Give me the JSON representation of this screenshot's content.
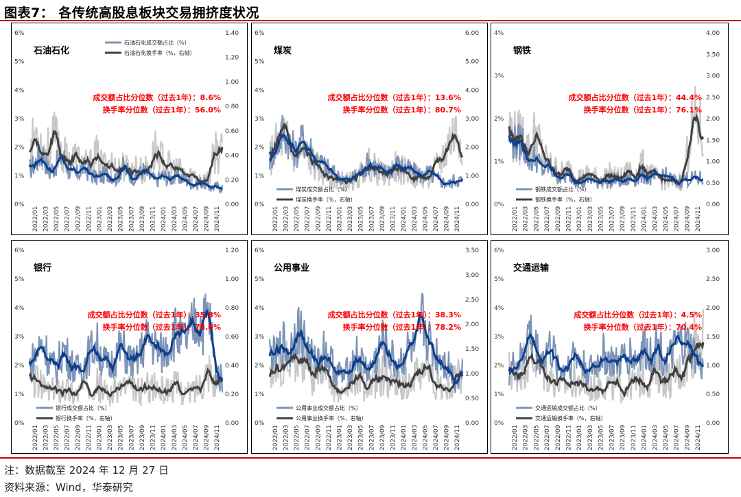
{
  "title": "图表7：  各传统高股息板块交易拥挤度状况",
  "note": "注：数据截至 2024 年 12 月 27 日",
  "source": "资料来源：Wind，华泰研究",
  "colors": {
    "share": "#0e3f8a",
    "share_light": "#7d94b8",
    "turnover": "#404040",
    "turnover_light": "#c8c8c8",
    "annotation": "#ff0000",
    "rule": "#c00000"
  },
  "x_ticks": [
    "2022/01",
    "2022/03",
    "2022/05",
    "2022/07",
    "2022/09",
    "2022/11",
    "2023/01",
    "2023/03",
    "2023/05",
    "2023/07",
    "2023/09",
    "2023/11",
    "2024/01",
    "2024/03",
    "2024/05",
    "2024/07",
    "2024/09",
    "2024/11"
  ],
  "chart_data": [
    {
      "type": "line",
      "panel_title": "石油石化",
      "y_left": {
        "min": 0,
        "max": 6,
        "ticks": [
          "0%",
          "1%",
          "2%",
          "3%",
          "4%",
          "5%",
          "6%"
        ]
      },
      "y_right": {
        "min": 0,
        "max": 1.4,
        "ticks": [
          "0.00",
          "0.20",
          "0.40",
          "0.60",
          "0.80",
          "1.00",
          "1.20",
          "1.40"
        ]
      },
      "annotations": [
        "成交额占比分位数（过去1年）：8.6%",
        "换手率分位数（过去1年）：56.0%"
      ],
      "legend": [
        "石油石化成交额占比（%）",
        "石油石化换手率（%，右轴）"
      ],
      "legend_position": "top",
      "share_anchors": [
        1.2,
        1.5,
        1.8,
        1.1,
        1.4,
        1.7,
        1.2,
        1.0,
        1.3,
        1.1,
        0.9,
        1.0,
        1.1,
        0.9,
        1.3,
        1.1,
        0.9,
        1.2,
        1.0,
        0.8,
        1.0,
        0.9,
        1.0,
        0.9,
        0.8,
        0.7,
        0.8,
        0.6,
        0.6,
        0.6
      ],
      "turnover_anchors": [
        0.4,
        0.6,
        0.45,
        0.45,
        0.55,
        0.4,
        0.35,
        0.38,
        0.32,
        0.3,
        0.4,
        0.3,
        0.35,
        0.28,
        0.32,
        0.26,
        0.3,
        0.26,
        0.3,
        0.45,
        0.35,
        0.3,
        0.28,
        0.25,
        0.22,
        0.24,
        0.2,
        0.2,
        0.45,
        0.4
      ],
      "share_series_name": "石油石化成交额占比（%）",
      "turnover_series_name": "石油石化换手率（%，右轴）"
    },
    {
      "type": "line",
      "panel_title": "煤炭",
      "y_left": {
        "min": 0,
        "max": 6,
        "ticks": [
          "0%",
          "1%",
          "2%",
          "3%",
          "4%",
          "5%",
          "6%"
        ]
      },
      "y_right": {
        "min": 0,
        "max": 6,
        "ticks": [
          "0.00",
          "1.00",
          "2.00",
          "3.00",
          "4.00",
          "5.00",
          "6.00"
        ]
      },
      "annotations": [
        "成交额占比分位数（过去1年）：13.6%",
        "换手率分位数（过去1年）：80.7%"
      ],
      "legend": [
        "煤炭成交额占比（%）",
        "煤炭换手率（%，右轴）"
      ],
      "legend_position": "bottom-left",
      "share_anchors": [
        1.6,
        2.0,
        2.6,
        2.2,
        1.8,
        2.3,
        2.0,
        1.6,
        1.4,
        1.2,
        1.0,
        0.9,
        0.8,
        1.0,
        1.2,
        1.5,
        1.3,
        1.1,
        1.2,
        1.4,
        1.3,
        1.2,
        1.1,
        1.0,
        1.1,
        0.9,
        0.8,
        0.7,
        0.9,
        0.8
      ],
      "turnover_anchors": [
        1.6,
        2.0,
        2.4,
        2.0,
        1.6,
        1.8,
        1.6,
        1.3,
        1.1,
        1.0,
        0.9,
        0.8,
        0.8,
        0.9,
        1.1,
        1.4,
        1.2,
        1.0,
        1.1,
        1.3,
        1.2,
        1.1,
        1.0,
        0.9,
        1.0,
        1.2,
        1.6,
        2.2,
        2.5,
        2.4
      ],
      "share_series_name": "煤炭成交额占比（%）",
      "turnover_series_name": "煤炭换手率（%，右轴）"
    },
    {
      "type": "line",
      "panel_title": "钢铁",
      "y_left": {
        "min": 0,
        "max": 4,
        "ticks": [
          "0%",
          "1%",
          "2%",
          "3%",
          "4%"
        ]
      },
      "y_right": {
        "min": 0,
        "max": 4,
        "ticks": [
          "0.00",
          "0.50",
          "1.00",
          "1.50",
          "2.00",
          "2.50",
          "3.00",
          "3.50",
          "4.00"
        ]
      },
      "annotations": [
        "成交额占比分位数（过去1年）：44.4%",
        "换手率分位数（过去1年）：76.1%"
      ],
      "legend": [
        "钢铁成交额占比（%）",
        "钢铁换手率（%，右轴）"
      ],
      "legend_position": "bottom-left",
      "share_anchors": [
        1.6,
        1.4,
        1.5,
        1.0,
        1.1,
        0.8,
        0.9,
        0.7,
        0.6,
        0.7,
        0.6,
        0.5,
        0.6,
        0.5,
        0.6,
        0.5,
        0.6,
        0.5,
        0.6,
        0.6,
        0.7,
        0.6,
        0.6,
        0.7,
        0.6,
        0.5,
        0.6,
        0.6,
        0.6,
        0.6
      ],
      "turnover_anchors": [
        1.8,
        1.5,
        1.6,
        1.2,
        1.7,
        1.1,
        0.9,
        0.8,
        0.7,
        0.8,
        0.7,
        0.6,
        0.7,
        0.6,
        0.6,
        0.7,
        0.6,
        0.6,
        0.8,
        0.7,
        0.9,
        0.7,
        0.6,
        0.6,
        0.5,
        0.5,
        0.6,
        1.6,
        2.0,
        1.5
      ],
      "share_series_name": "钢铁成交额占比（%）",
      "turnover_series_name": "钢铁换手率（%，右轴）"
    },
    {
      "type": "line",
      "panel_title": "银行",
      "y_left": {
        "min": 0,
        "max": 6,
        "ticks": [
          "0%",
          "1%",
          "2%",
          "3%",
          "4%",
          "5%",
          "6%"
        ]
      },
      "y_right": {
        "min": 0,
        "max": 1.2,
        "ticks": [
          "0.00",
          "0.20",
          "0.40",
          "0.60",
          "0.80",
          "1.00",
          "1.20"
        ]
      },
      "annotations": [
        "成交额占比分位数（过去1年）：35.8%",
        "换手率分位数（过去1年）：78.6%"
      ],
      "legend": [
        "银行成交额占比（%）",
        "银行换手率（%，右轴）"
      ],
      "legend_position": "bottom-left",
      "share_anchors": [
        2.0,
        2.4,
        2.8,
        2.2,
        1.8,
        2.6,
        2.2,
        1.8,
        2.0,
        2.4,
        2.8,
        2.2,
        1.9,
        2.4,
        2.6,
        2.2,
        2.0,
        2.6,
        3.0,
        2.6,
        2.4,
        2.8,
        3.2,
        2.8,
        3.0,
        3.6,
        3.4,
        3.8,
        1.8,
        1.5
      ],
      "turnover_anchors": [
        0.26,
        0.3,
        0.24,
        0.22,
        0.22,
        0.26,
        0.22,
        0.2,
        0.24,
        0.3,
        0.28,
        0.22,
        0.2,
        0.22,
        0.26,
        0.24,
        0.22,
        0.22,
        0.26,
        0.24,
        0.22,
        0.24,
        0.26,
        0.22,
        0.2,
        0.24,
        0.3,
        0.4,
        0.25,
        0.3
      ],
      "share_series_name": "银行成交额占比（%）",
      "turnover_series_name": "银行换手率（%，右轴）"
    },
    {
      "type": "line",
      "panel_title": "公用事业",
      "y_left": {
        "min": 0,
        "max": 6,
        "ticks": [
          "0%",
          "1%",
          "2%",
          "3%",
          "4%",
          "5%",
          "6%"
        ]
      },
      "y_right": {
        "min": 0,
        "max": 3.5,
        "ticks": [
          "0.00",
          "0.50",
          "1.00",
          "1.50",
          "2.00",
          "2.50",
          "3.00",
          "3.50"
        ]
      },
      "annotations": [
        "成交额占比分位数（过去1年）：38.3%",
        "换手率分位数（过去1年）：78.2%"
      ],
      "legend": [
        "公用事业成交额占比（%）",
        "公用事业换手率（%，右轴）"
      ],
      "legend_position": "bottom-left",
      "share_anchors": [
        2.4,
        2.2,
        2.8,
        2.4,
        3.4,
        3.0,
        2.4,
        2.0,
        2.6,
        2.2,
        1.8,
        1.6,
        1.8,
        2.4,
        2.0,
        1.8,
        2.2,
        2.8,
        2.4,
        2.0,
        2.2,
        2.6,
        2.4,
        3.6,
        2.8,
        2.4,
        2.2,
        2.0,
        1.4,
        1.8
      ],
      "turnover_anchors": [
        1.2,
        1.0,
        1.3,
        1.1,
        1.5,
        1.3,
        1.0,
        0.9,
        1.2,
        0.9,
        0.7,
        0.6,
        0.7,
        1.0,
        0.8,
        0.7,
        0.8,
        1.0,
        0.9,
        0.7,
        0.8,
        0.9,
        0.9,
        1.2,
        1.0,
        0.8,
        0.7,
        0.65,
        0.9,
        1.1
      ],
      "share_series_name": "公用事业成交额占比（%）",
      "turnover_series_name": "公用事业换手率（%，右轴）"
    },
    {
      "type": "line",
      "panel_title": "交通运输",
      "y_left": {
        "min": 0,
        "max": 6,
        "ticks": [
          "0%",
          "1%",
          "2%",
          "3%",
          "4%",
          "5%",
          "6%"
        ]
      },
      "y_right": {
        "min": 0,
        "max": 3,
        "ticks": [
          "0.00",
          "0.50",
          "1.00",
          "1.50",
          "2.00",
          "2.50",
          "3.00"
        ]
      },
      "annotations": [
        "成交额占比分位数（过去1年）：4.5%",
        "换手率分位数（过去1年）：70.4%"
      ],
      "legend": [
        "交通运输成交额占比（%）",
        "交通运输换手率（%，右轴）"
      ],
      "legend_position": "bottom-left",
      "share_anchors": [
        1.8,
        2.0,
        2.2,
        3.2,
        2.6,
        2.2,
        2.6,
        2.2,
        1.8,
        2.2,
        2.4,
        2.0,
        1.8,
        2.0,
        2.4,
        2.2,
        2.0,
        2.2,
        2.4,
        2.2,
        2.6,
        2.4,
        2.8,
        2.4,
        2.2,
        2.6,
        2.8,
        2.6,
        2.2,
        1.8
      ],
      "turnover_anchors": [
        0.9,
        0.85,
        1.0,
        1.2,
        1.1,
        0.9,
        0.85,
        0.75,
        0.65,
        0.7,
        0.75,
        0.65,
        0.6,
        0.65,
        0.7,
        0.65,
        0.6,
        0.6,
        0.7,
        0.65,
        0.8,
        0.75,
        0.9,
        0.8,
        0.75,
        0.85,
        0.95,
        1.2,
        1.6,
        1.4
      ],
      "share_series_name": "交通运输成交额占比（%）",
      "turnover_series_name": "交通运输换手率（%，右轴）"
    }
  ]
}
